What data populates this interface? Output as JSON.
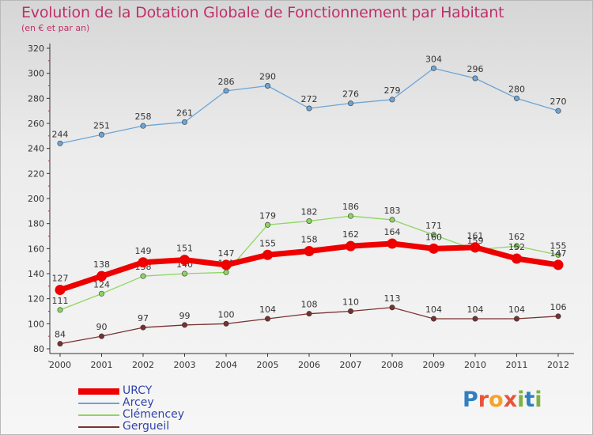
{
  "header": {
    "title": "Evolution de la Dotation Globale de Fonctionnement par Habitant",
    "subtitle": "(en € et par an)"
  },
  "logo": {
    "text": "Proxiti",
    "colors": [
      "#2f7fc1",
      "#e8543a",
      "#f4a32a",
      "#e8543a",
      "#7cb342",
      "#2f7fc1",
      "#7cb342"
    ]
  },
  "chart_data": {
    "type": "line",
    "title": "Evolution de la Dotation Globale de Fonctionnement par Habitant",
    "subtitle": "(en € et par an)",
    "x": [
      "2000",
      "2001",
      "2002",
      "2003",
      "2004",
      "2005",
      "2006",
      "2007",
      "2008",
      "2009",
      "2010",
      "2011",
      "2012"
    ],
    "ylim": [
      80,
      320
    ],
    "yticks": [
      80,
      100,
      120,
      140,
      160,
      180,
      200,
      220,
      240,
      260,
      280,
      300,
      320
    ],
    "grid": false,
    "legend": "bottom-left",
    "series": [
      {
        "name": "URCY",
        "color": "#ee0000",
        "emphasis": true,
        "values": [
          127,
          138,
          149,
          151,
          147,
          155,
          158,
          162,
          164,
          160,
          161,
          152,
          147
        ]
      },
      {
        "name": "Arcey",
        "color": "#6ca5d6",
        "values": [
          244,
          251,
          258,
          261,
          286,
          290,
          272,
          276,
          279,
          304,
          296,
          280,
          270
        ]
      },
      {
        "name": "Clémencey",
        "color": "#8cd660",
        "values": [
          111,
          124,
          138,
          140,
          141,
          179,
          182,
          186,
          183,
          171,
          159,
          162,
          155
        ]
      },
      {
        "name": "Gergueil",
        "color": "#7a3030",
        "values": [
          84,
          90,
          97,
          99,
          100,
          104,
          108,
          110,
          113,
          104,
          104,
          104,
          106
        ]
      }
    ]
  }
}
